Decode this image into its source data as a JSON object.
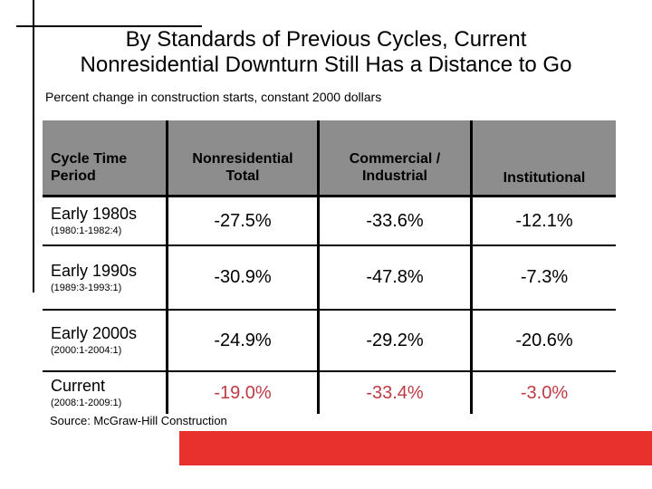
{
  "colors": {
    "header_bg": "#8d8d8d",
    "accent_red": "#e8302d",
    "highlight_value_red": "#c03a43",
    "line_black": "#000000"
  },
  "title": {
    "line1": "By Standards of Previous Cycles, Current",
    "line2": "Nonresidential Downturn Still Has a Distance to Go"
  },
  "subtitle": "Percent change in construction starts, constant 2000 dollars",
  "table": {
    "headers": [
      {
        "label": "Cycle Time\nPeriod"
      },
      {
        "label": "Nonresidential\nTotal"
      },
      {
        "label": "Commercial /\nIndustrial"
      },
      {
        "label": "Institutional"
      }
    ],
    "rows": [
      {
        "label": "Early 1980s",
        "period": "(1980:1-1982:4)",
        "values": [
          "-27.5%",
          "-33.6%",
          "-12.1%"
        ],
        "highlight": false
      },
      {
        "label": "Early 1990s",
        "period": "(1989:3-1993:1)",
        "values": [
          "-30.9%",
          "-47.8%",
          "-7.3%"
        ],
        "highlight": false
      },
      {
        "label": "Early 2000s",
        "period": "(2000:1-2004:1)",
        "values": [
          "-24.9%",
          "-29.2%",
          "-20.6%"
        ],
        "highlight": false
      },
      {
        "label": "Current",
        "period": "(2008:1-2009:1)",
        "values": [
          "-19.0%",
          "-33.4%",
          "-3.0%"
        ],
        "highlight": true
      }
    ]
  },
  "source": "Source: McGraw-Hill Construction",
  "chart_data": {
    "type": "table",
    "title": "Percent change in construction starts, constant 2000 dollars",
    "columns": [
      "Nonresidential Total",
      "Commercial / Industrial",
      "Institutional"
    ],
    "rows": [
      {
        "cycle": "Early 1980s",
        "period": "1980:1-1982:4",
        "values": [
          -27.5,
          -33.6,
          -12.1
        ]
      },
      {
        "cycle": "Early 1990s",
        "period": "1989:3-1993:1",
        "values": [
          -30.9,
          -47.8,
          -7.3
        ]
      },
      {
        "cycle": "Early 2000s",
        "period": "2000:1-2004:1",
        "values": [
          -24.9,
          -29.2,
          -20.6
        ]
      },
      {
        "cycle": "Current",
        "period": "2008:1-2009:1",
        "values": [
          -19.0,
          -33.4,
          -3.0
        ]
      }
    ],
    "highlight_row": "Current",
    "units": "percent change",
    "source": "McGraw-Hill Construction"
  }
}
